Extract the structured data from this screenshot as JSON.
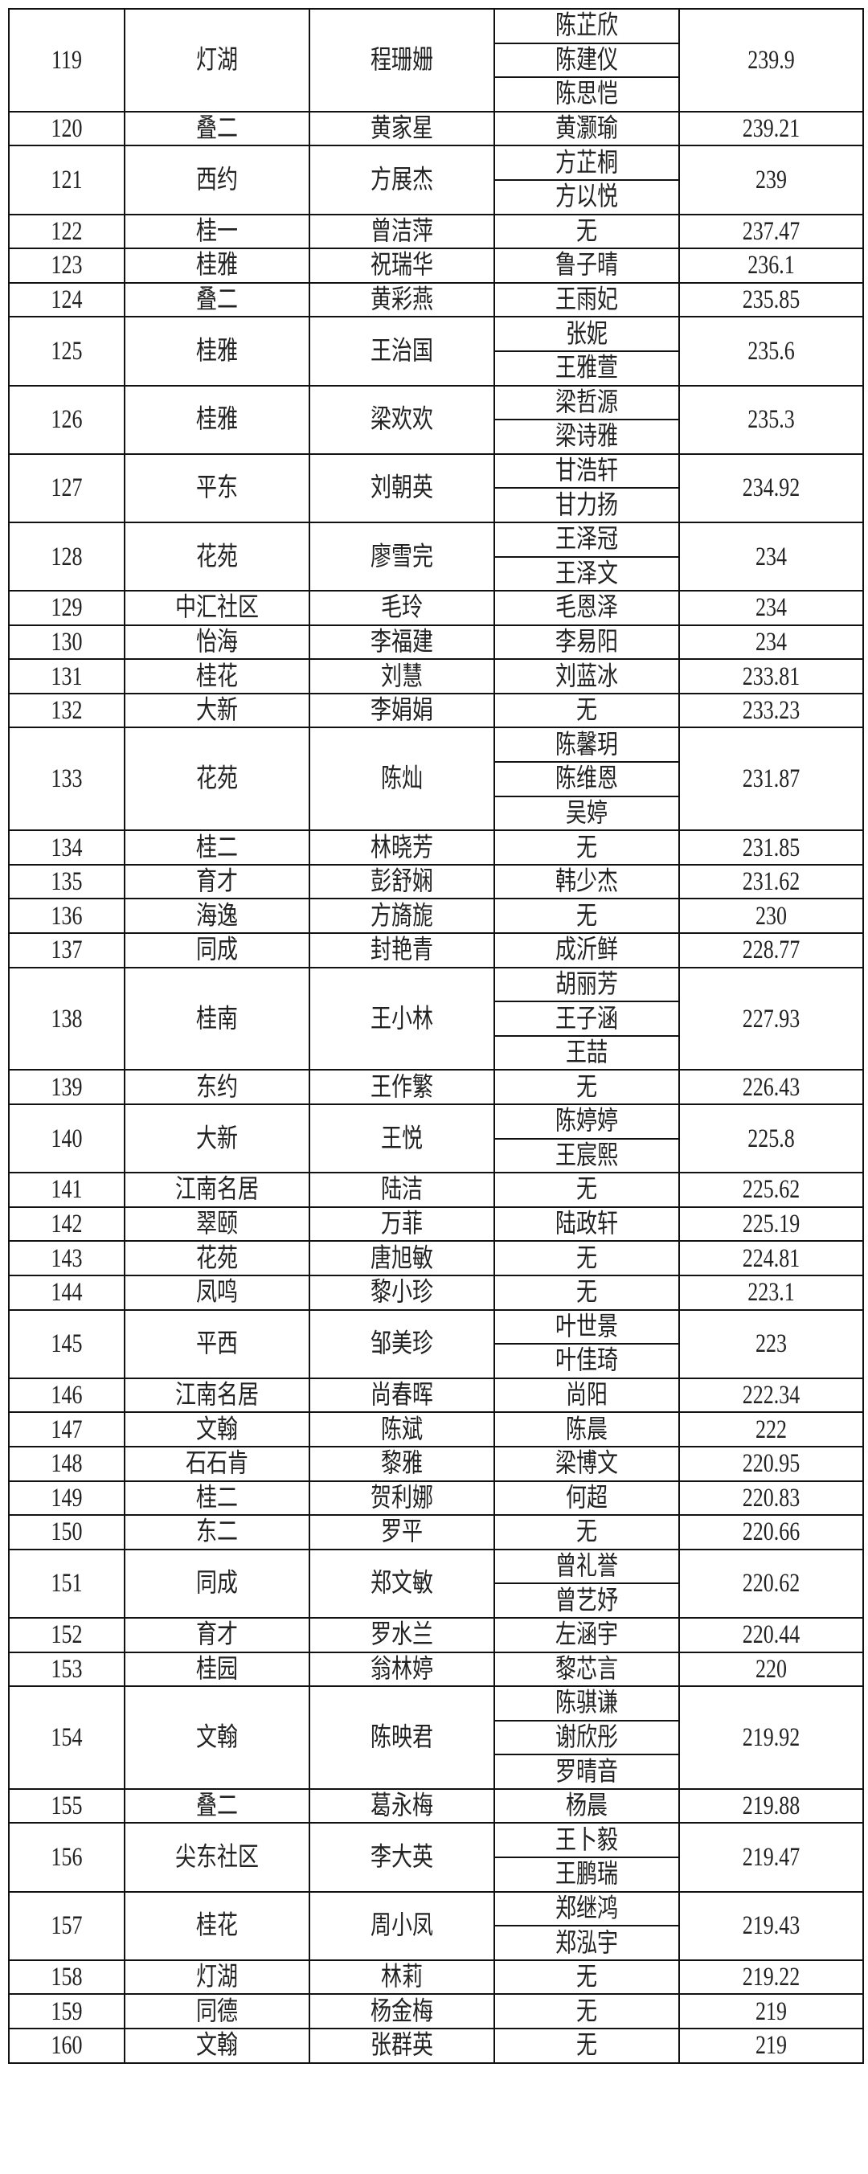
{
  "rows": [
    {
      "no": "119",
      "community": "灯湖",
      "name": "程珊姗",
      "children": [
        "陈芷欣",
        "陈建仪",
        "陈思恺"
      ],
      "score": "239.9"
    },
    {
      "no": "120",
      "community": "叠二",
      "name": "黄家星",
      "children": [
        "黄灏瑜"
      ],
      "score": "239.21"
    },
    {
      "no": "121",
      "community": "西约",
      "name": "方展杰",
      "children": [
        "方芷桐",
        "方以悦"
      ],
      "score": "239"
    },
    {
      "no": "122",
      "community": "桂一",
      "name": "曾洁萍",
      "children": [
        "无"
      ],
      "score": "237.47"
    },
    {
      "no": "123",
      "community": "桂雅",
      "name": "祝瑞华",
      "children": [
        "鲁子晴"
      ],
      "score": "236.1"
    },
    {
      "no": "124",
      "community": "叠二",
      "name": "黄彩燕",
      "children": [
        "王雨妃"
      ],
      "score": "235.85"
    },
    {
      "no": "125",
      "community": "桂雅",
      "name": "王治国",
      "children": [
        "张妮",
        "王雅萱"
      ],
      "score": "235.6"
    },
    {
      "no": "126",
      "community": "桂雅",
      "name": "梁欢欢",
      "children": [
        "梁哲源",
        "梁诗雅"
      ],
      "score": "235.3"
    },
    {
      "no": "127",
      "community": "平东",
      "name": "刘朝英",
      "children": [
        "甘浩轩",
        "甘力扬"
      ],
      "score": "234.92"
    },
    {
      "no": "128",
      "community": "花苑",
      "name": "廖雪完",
      "children": [
        "王泽冠",
        "王泽文"
      ],
      "score": "234"
    },
    {
      "no": "129",
      "community": "中汇社区",
      "name": "毛玲",
      "children": [
        "毛恩泽"
      ],
      "score": "234"
    },
    {
      "no": "130",
      "community": "怡海",
      "name": "李福建",
      "children": [
        "李易阳"
      ],
      "score": "234"
    },
    {
      "no": "131",
      "community": "桂花",
      "name": "刘慧",
      "children": [
        "刘蓝冰"
      ],
      "score": "233.81"
    },
    {
      "no": "132",
      "community": "大新",
      "name": "李娟娟",
      "children": [
        "无"
      ],
      "score": "233.23"
    },
    {
      "no": "133",
      "community": "花苑",
      "name": "陈灿",
      "children": [
        "陈馨玥",
        "陈维恩",
        "吴婷"
      ],
      "score": "231.87"
    },
    {
      "no": "134",
      "community": "桂二",
      "name": "林晓芳",
      "children": [
        "无"
      ],
      "score": "231.85"
    },
    {
      "no": "135",
      "community": "育才",
      "name": "彭舒娴",
      "children": [
        "韩少杰"
      ],
      "score": "231.62"
    },
    {
      "no": "136",
      "community": "海逸",
      "name": "方旖旎",
      "children": [
        "无"
      ],
      "score": "230"
    },
    {
      "no": "137",
      "community": "同成",
      "name": "封艳青",
      "children": [
        "成沂鲜"
      ],
      "score": "228.77"
    },
    {
      "no": "138",
      "community": "桂南",
      "name": "王小林",
      "children": [
        "胡丽芳",
        "王子涵",
        "王喆"
      ],
      "score": "227.93"
    },
    {
      "no": "139",
      "community": "东约",
      "name": "王作繁",
      "children": [
        "无"
      ],
      "score": "226.43"
    },
    {
      "no": "140",
      "community": "大新",
      "name": "王悦",
      "children": [
        "陈婷婷",
        "王宸熙"
      ],
      "score": "225.8"
    },
    {
      "no": "141",
      "community": "江南名居",
      "name": "陆洁",
      "children": [
        "无"
      ],
      "score": "225.62"
    },
    {
      "no": "142",
      "community": "翠颐",
      "name": "万菲",
      "children": [
        "陆政轩"
      ],
      "score": "225.19"
    },
    {
      "no": "143",
      "community": "花苑",
      "name": "唐旭敏",
      "children": [
        "无"
      ],
      "score": "224.81"
    },
    {
      "no": "144",
      "community": "凤鸣",
      "name": "黎小珍",
      "children": [
        "无"
      ],
      "score": "223.1"
    },
    {
      "no": "145",
      "community": "平西",
      "name": "邹美珍",
      "children": [
        "叶世景",
        "叶佳琦"
      ],
      "score": "223"
    },
    {
      "no": "146",
      "community": "江南名居",
      "name": "尚春晖",
      "children": [
        "尚阳"
      ],
      "score": "222.34"
    },
    {
      "no": "147",
      "community": "文翰",
      "name": "陈斌",
      "children": [
        "陈晨"
      ],
      "score": "222"
    },
    {
      "no": "148",
      "community": "石石肯",
      "name": "黎雅",
      "children": [
        "梁博文"
      ],
      "score": "220.95"
    },
    {
      "no": "149",
      "community": "桂二",
      "name": "贺利娜",
      "children": [
        "何超"
      ],
      "score": "220.83"
    },
    {
      "no": "150",
      "community": "东二",
      "name": "罗平",
      "children": [
        "无"
      ],
      "score": "220.66"
    },
    {
      "no": "151",
      "community": "同成",
      "name": "郑文敏",
      "children": [
        "曾礼誉",
        "曾艺妤"
      ],
      "score": "220.62"
    },
    {
      "no": "152",
      "community": "育才",
      "name": "罗水兰",
      "children": [
        "左涵宇"
      ],
      "score": "220.44"
    },
    {
      "no": "153",
      "community": "桂园",
      "name": "翁林婷",
      "children": [
        "黎芯言"
      ],
      "score": "220"
    },
    {
      "no": "154",
      "community": "文翰",
      "name": "陈映君",
      "children": [
        "陈骐谦",
        "谢欣彤",
        "罗晴音"
      ],
      "score": "219.92"
    },
    {
      "no": "155",
      "community": "叠二",
      "name": "葛永梅",
      "children": [
        "杨晨"
      ],
      "score": "219.88"
    },
    {
      "no": "156",
      "community": "尖东社区",
      "name": "李大英",
      "children": [
        "王卜毅",
        "王鹏瑞"
      ],
      "score": "219.47"
    },
    {
      "no": "157",
      "community": "桂花",
      "name": "周小凤",
      "children": [
        "郑继鸿",
        "郑泓宇"
      ],
      "score": "219.43"
    },
    {
      "no": "158",
      "community": "灯湖",
      "name": "林莉",
      "children": [
        "无"
      ],
      "score": "219.22"
    },
    {
      "no": "159",
      "community": "同德",
      "name": "杨金梅",
      "children": [
        "无"
      ],
      "score": "219"
    },
    {
      "no": "160",
      "community": "文翰",
      "name": "张群英",
      "children": [
        "无"
      ],
      "score": "219"
    }
  ]
}
